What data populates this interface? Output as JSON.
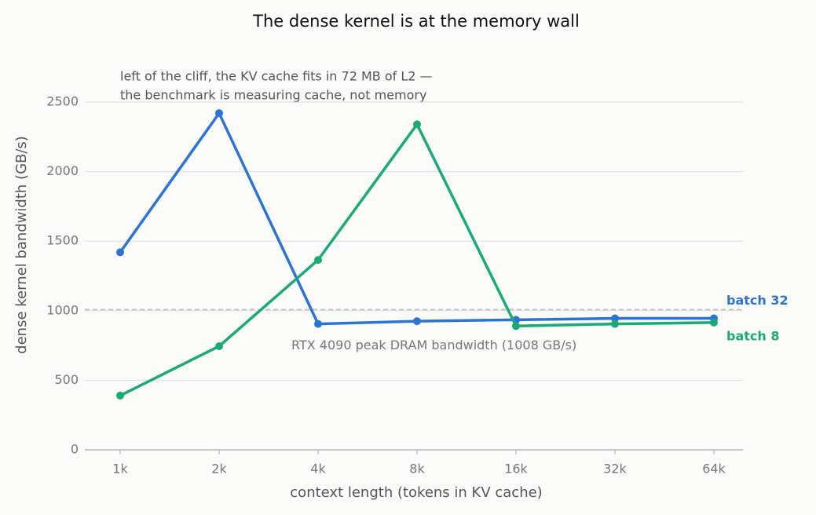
{
  "chart_data": {
    "type": "line",
    "title": "The dense kernel is at the memory wall",
    "x_label": "context length (tokens in KV cache)",
    "y_label": "dense kernel bandwidth (GB/s)",
    "categories": [
      "1k",
      "2k",
      "4k",
      "8k",
      "16k",
      "32k",
      "64k"
    ],
    "series": [
      {
        "name": "batch 32",
        "color": "#2b74d4",
        "values": [
          1420,
          2420,
          905,
          925,
          935,
          945,
          945
        ]
      },
      {
        "name": "batch 8",
        "color": "#1aaa78",
        "values": [
          390,
          745,
          1365,
          2340,
          890,
          905,
          915
        ]
      }
    ],
    "ylim": [
      0,
      2500
    ],
    "yticks": [
      0,
      500,
      1000,
      1500,
      2000,
      2500
    ],
    "grid": true,
    "reference_line": {
      "value": 1008,
      "label": "RTX 4090 peak DRAM bandwidth (1008 GB/s)"
    },
    "annotation": [
      "left of the cliff, the KV cache fits in 72 MB of L2 —",
      "the benchmark is measuring cache, not memory"
    ]
  }
}
